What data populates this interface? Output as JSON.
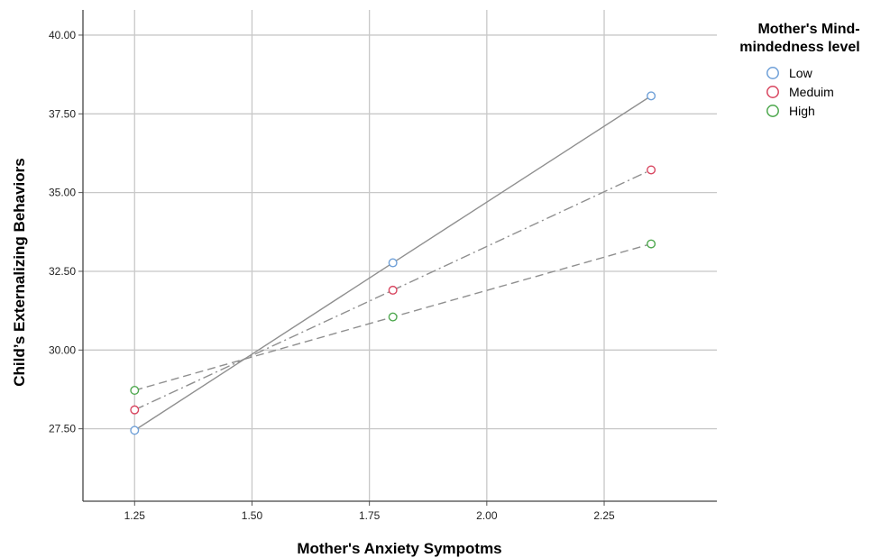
{
  "chart_data": {
    "type": "scatter",
    "title": "",
    "xlabel": "Mother's Anxiety Sympotms",
    "ylabel": "Child’s Externalizing Behaviors",
    "xlim": [
      1.14,
      2.49
    ],
    "ylim": [
      25.2,
      40.8
    ],
    "x_ticks": [
      "1.25",
      "1.50",
      "1.75",
      "2.00",
      "2.25"
    ],
    "y_ticks": [
      "27.50",
      "30.00",
      "32.50",
      "35.00",
      "37.50",
      "40.00"
    ],
    "grid": true,
    "legend": {
      "title_lines": [
        "Mother's Mind-",
        "mindedness level"
      ],
      "placement": "top-right"
    },
    "series": [
      {
        "name": "Low",
        "color": "#6fa0d8",
        "line_style": "solid",
        "x": [
          1.25,
          1.8,
          2.35
        ],
        "y": [
          27.45,
          32.77,
          38.07
        ]
      },
      {
        "name": "Meduim",
        "color": "#d8455f",
        "line_style": "dash-dot",
        "x": [
          1.25,
          1.8,
          2.35
        ],
        "y": [
          28.1,
          31.9,
          35.72
        ]
      },
      {
        "name": "High",
        "color": "#4ea84e",
        "line_style": "dashed",
        "x": [
          1.25,
          1.8,
          2.35
        ],
        "y": [
          28.72,
          31.05,
          33.37
        ]
      }
    ]
  }
}
